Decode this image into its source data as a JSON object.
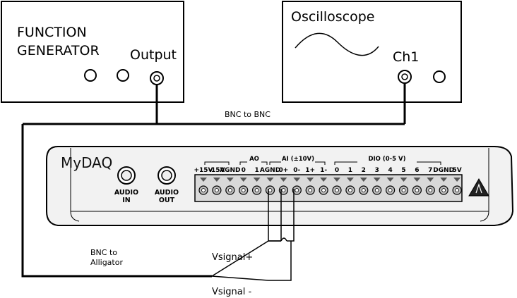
{
  "function_generator": {
    "title_line1": "FUNCTION",
    "title_line2": "GENERATOR",
    "output_label": "Output"
  },
  "oscilloscope": {
    "title": "Oscilloscope",
    "channel_label": "Ch1"
  },
  "cables": {
    "bnc_to_bnc": "BNC to BNC",
    "bnc_to_alligator_line1": "BNC to",
    "bnc_to_alligator_line2": "Alligator",
    "vsignal_plus": "Vsignal+",
    "vsignal_minus": "Vsignal -"
  },
  "mydaq": {
    "name": "MyDAQ",
    "audio_in_line1": "AUDIO",
    "audio_in_line2": "IN",
    "audio_out_line1": "AUDIO",
    "audio_out_line2": "OUT",
    "group_ao": "AO",
    "group_ai": "AI (±10V)",
    "group_dio": "DIO (0-5 V)",
    "pins": [
      "+15V",
      "-15V",
      "AGND",
      "0",
      "1",
      "AGND",
      "0+",
      "0-",
      "1+",
      "1-",
      "0",
      "1",
      "2",
      "3",
      "4",
      "5",
      "6",
      "7",
      "DGND",
      "5V"
    ]
  },
  "colors": {
    "line": "#000000",
    "device_fill": "#f2f2f2",
    "terminal_fill": "#d9d9d9"
  }
}
